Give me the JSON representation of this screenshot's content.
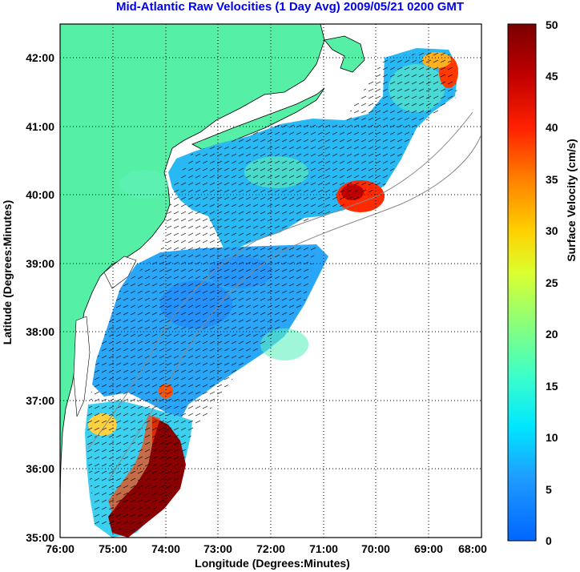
{
  "title": "Mid-Atlantic Raw Velocities (1 Day Avg) 2009/05/21 0200 GMT",
  "x_axis": {
    "label": "Longitude (Degrees:Minutes)",
    "ticks": [
      "76:00",
      "75:00",
      "74:00",
      "73:00",
      "72:00",
      "71:00",
      "70:00",
      "69:00",
      "68:00"
    ]
  },
  "y_axis": {
    "label": "Latitude (Degrees:Minutes)",
    "ticks": [
      "35:00",
      "36:00",
      "37:00",
      "38:00",
      "39:00",
      "40:00",
      "41:00",
      "42:00"
    ]
  },
  "colorbar": {
    "label": "Surface Velocity (cm/s)",
    "ticks": [
      "0",
      "5",
      "10",
      "15",
      "20",
      "25",
      "30",
      "35",
      "40",
      "45",
      "50"
    ],
    "min": 0,
    "max": 50
  },
  "colors": {
    "land": "#55efa6",
    "ocean": "#ffffff",
    "title": "#0000ee",
    "grid": "#000000"
  },
  "chart_data": {
    "type": "heatmap",
    "title": "Mid-Atlantic Raw Velocities (1 Day Avg) 2009/05/21 0200 GMT",
    "xlabel": "Longitude (Degrees:Minutes)",
    "ylabel": "Latitude (Degrees:Minutes)",
    "xlim": [
      -76,
      -68
    ],
    "ylim": [
      35,
      42.5
    ],
    "grid": true,
    "colorbar_label": "Surface Velocity (cm/s)",
    "colorbar_range": [
      0,
      50
    ],
    "regions": [
      {
        "lon": -74.8,
        "lat": 35.4,
        "speed": 50
      },
      {
        "lon": -74.4,
        "lat": 35.8,
        "speed": 50
      },
      {
        "lon": -74.1,
        "lat": 36.2,
        "speed": 48
      },
      {
        "lon": -75.3,
        "lat": 36.7,
        "speed": 25
      },
      {
        "lon": -74.0,
        "lat": 37.1,
        "speed": 40
      },
      {
        "lon": -74.3,
        "lat": 38.2,
        "speed": 8
      },
      {
        "lon": -73.4,
        "lat": 39.0,
        "speed": 8
      },
      {
        "lon": -72.5,
        "lat": 39.9,
        "speed": 12
      },
      {
        "lon": -70.4,
        "lat": 40.0,
        "speed": 44
      },
      {
        "lon": -70.2,
        "lat": 39.8,
        "speed": 40
      },
      {
        "lon": -69.5,
        "lat": 41.2,
        "speed": 12
      },
      {
        "lon": -68.7,
        "lat": 41.5,
        "speed": 42
      },
      {
        "lon": -68.8,
        "lat": 42.0,
        "speed": 30
      }
    ]
  }
}
